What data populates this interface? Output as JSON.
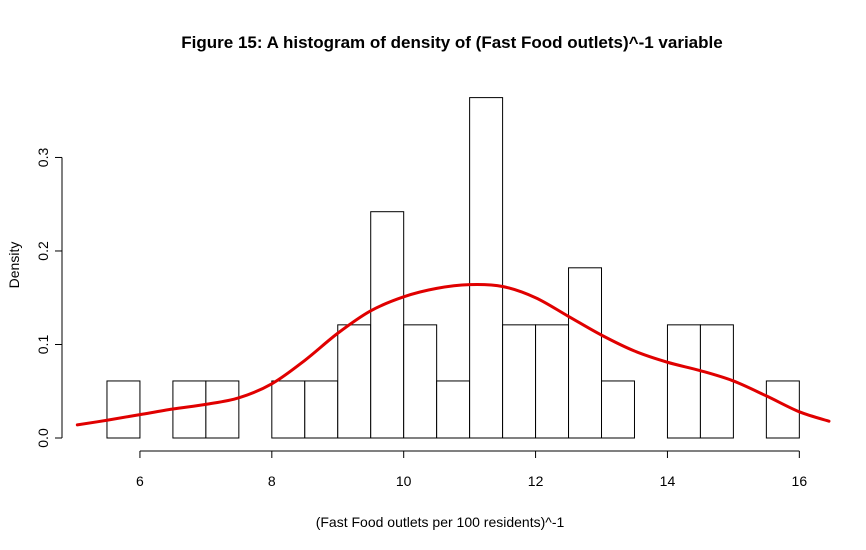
{
  "chart_data": {
    "type": "bar",
    "title": "Figure 15: A histogram of density of (Fast Food outlets)^-1 variable",
    "xlabel": "(Fast Food outlets per 100 residents)^-1",
    "ylabel": "Density",
    "xlim": [
      5.0,
      16.45
    ],
    "ylim": [
      0,
      0.37
    ],
    "x_ticks": [
      6,
      8,
      10,
      12,
      14,
      16
    ],
    "y_ticks": [
      0.0,
      0.1,
      0.2,
      0.3
    ],
    "x_tick_labels": [
      "6",
      "8",
      "10",
      "12",
      "14",
      "16"
    ],
    "y_tick_labels": [
      "0.0",
      "0.1",
      "0.2",
      "0.3"
    ],
    "bins": [
      {
        "start": 5.5,
        "end": 6.0,
        "density": 0.061
      },
      {
        "start": 6.0,
        "end": 6.5,
        "density": 0.0
      },
      {
        "start": 6.5,
        "end": 7.0,
        "density": 0.061
      },
      {
        "start": 7.0,
        "end": 7.5,
        "density": 0.061
      },
      {
        "start": 7.5,
        "end": 8.0,
        "density": 0.0
      },
      {
        "start": 8.0,
        "end": 8.5,
        "density": 0.061
      },
      {
        "start": 8.5,
        "end": 9.0,
        "density": 0.061
      },
      {
        "start": 9.0,
        "end": 9.5,
        "density": 0.121
      },
      {
        "start": 9.5,
        "end": 10.0,
        "density": 0.242
      },
      {
        "start": 10.0,
        "end": 10.5,
        "density": 0.121
      },
      {
        "start": 10.5,
        "end": 11.0,
        "density": 0.061
      },
      {
        "start": 11.0,
        "end": 11.5,
        "density": 0.364
      },
      {
        "start": 11.5,
        "end": 12.0,
        "density": 0.121
      },
      {
        "start": 12.0,
        "end": 12.5,
        "density": 0.121
      },
      {
        "start": 12.5,
        "end": 13.0,
        "density": 0.182
      },
      {
        "start": 13.0,
        "end": 13.5,
        "density": 0.061
      },
      {
        "start": 13.5,
        "end": 14.0,
        "density": 0.0
      },
      {
        "start": 14.0,
        "end": 14.5,
        "density": 0.121
      },
      {
        "start": 14.5,
        "end": 15.0,
        "density": 0.121
      },
      {
        "start": 15.0,
        "end": 15.5,
        "density": 0.0
      },
      {
        "start": 15.5,
        "end": 16.0,
        "density": 0.061
      }
    ],
    "density_curve": {
      "color": "#e00000",
      "points": [
        [
          5.05,
          0.014
        ],
        [
          5.5,
          0.019
        ],
        [
          6.0,
          0.025
        ],
        [
          6.5,
          0.031
        ],
        [
          7.0,
          0.036
        ],
        [
          7.5,
          0.043
        ],
        [
          8.0,
          0.058
        ],
        [
          8.5,
          0.083
        ],
        [
          9.0,
          0.112
        ],
        [
          9.5,
          0.136
        ],
        [
          10.0,
          0.151
        ],
        [
          10.5,
          0.16
        ],
        [
          11.0,
          0.164
        ],
        [
          11.5,
          0.162
        ],
        [
          12.0,
          0.15
        ],
        [
          12.5,
          0.13
        ],
        [
          13.0,
          0.11
        ],
        [
          13.5,
          0.093
        ],
        [
          14.0,
          0.081
        ],
        [
          14.5,
          0.072
        ],
        [
          15.0,
          0.061
        ],
        [
          15.5,
          0.045
        ],
        [
          16.0,
          0.028
        ],
        [
          16.45,
          0.018
        ]
      ]
    },
    "grid": false,
    "bar_fill": "#ffffff",
    "bar_stroke": "#000000"
  }
}
